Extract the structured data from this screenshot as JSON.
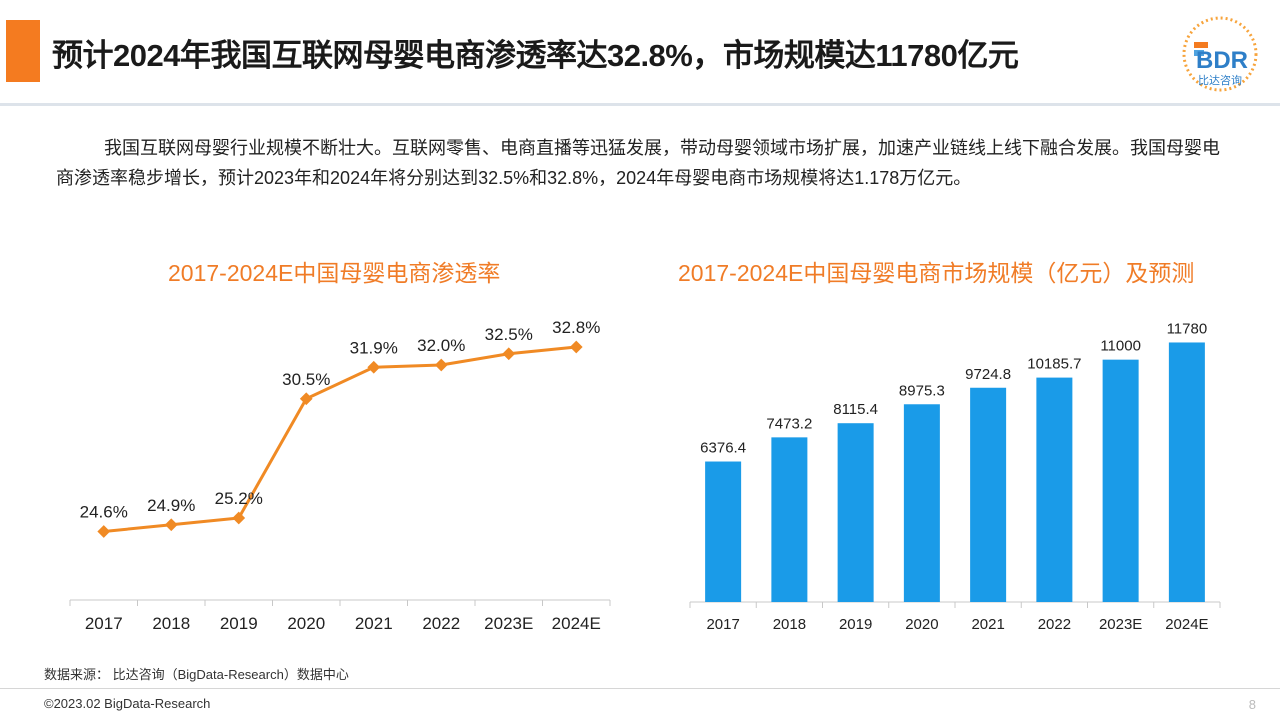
{
  "header": {
    "title": "预计2024年我国互联网母婴电商渗透率达32.8%，市场规模达11780亿元",
    "logo_text": "BDR",
    "logo_subtext": "比达咨询",
    "accent_color": "#f47b20"
  },
  "summary": "我国互联网母婴行业规模不断壮大。互联网零售、电商直播等迅猛发展，带动母婴领域市场扩展，加速产业链线上线下融合发展。我国母婴电商渗透率稳步增长，预计2023年和2024年将分别达到32.5%和32.8%，2024年母婴电商市场规模将达1.178万亿元。",
  "chart_data": [
    {
      "type": "line",
      "title": "2017-2024E中国母婴电商渗透率",
      "categories": [
        "2017",
        "2018",
        "2019",
        "2020",
        "2021",
        "2022",
        "2023E",
        "2024E"
      ],
      "values": [
        24.6,
        24.9,
        25.2,
        30.5,
        31.9,
        32.0,
        32.5,
        32.8
      ],
      "labels": [
        "24.6%",
        "24.9%",
        "25.2%",
        "30.5%",
        "31.9%",
        "32.0%",
        "32.5%",
        "32.8%"
      ],
      "ylim": [
        22,
        34
      ],
      "color": "#f08a24",
      "grid": false,
      "legend": "none"
    },
    {
      "type": "bar",
      "title": "2017-2024E中国母婴电商市场规模（亿元）及预测",
      "categories": [
        "2017",
        "2018",
        "2019",
        "2020",
        "2021",
        "2022",
        "2023E",
        "2024E"
      ],
      "values": [
        6376.4,
        7473.2,
        8115.4,
        8975.3,
        9724.8,
        10185.7,
        11000,
        11780
      ],
      "labels": [
        "6376.4",
        "7473.2",
        "8115.4",
        "8975.3",
        "9724.8",
        "10185.7",
        "11000",
        "11780"
      ],
      "ylim": [
        0,
        12800
      ],
      "color": "#1a9be8",
      "grid": false,
      "legend": "none"
    }
  ],
  "source": "数据来源： 比达咨询（BigData-Research）数据中心",
  "footer": "©2023.02 BigData-Research",
  "page_number": "8"
}
